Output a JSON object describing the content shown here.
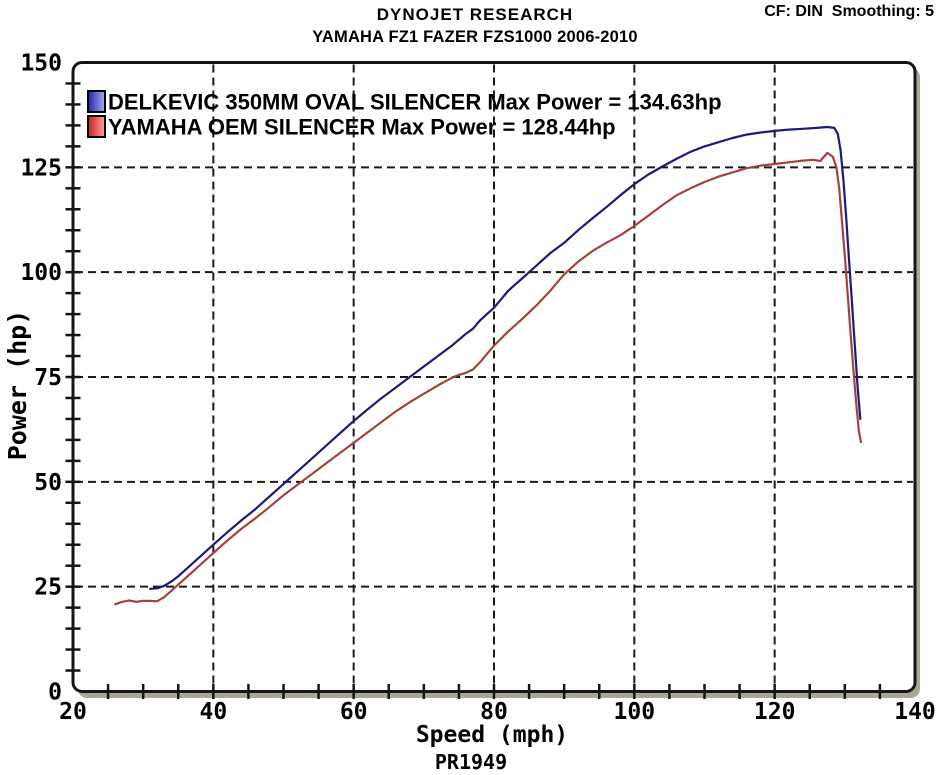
{
  "chart_data": {
    "type": "line",
    "title": "DYNOJET RESEARCH",
    "subtitle": "YAMAHA FZ1 FAZER FZS1000 2006-2010",
    "correction_info": "CF: DIN  Smoothing: 5",
    "run_id": "PR1949",
    "xlabel": "Speed (mph)",
    "ylabel": "Power (hp)",
    "xlim": [
      20,
      140
    ],
    "ylim": [
      0,
      150
    ],
    "x_major_ticks": [
      20,
      40,
      60,
      80,
      100,
      120,
      140
    ],
    "y_major_ticks": [
      0,
      25,
      50,
      75,
      100,
      125,
      150
    ],
    "x_minor_step": 5,
    "y_minor_step": 5,
    "grid": "dashed-major",
    "legend_position": "top-left-inside",
    "colors": {
      "frame_stroke": "#151515",
      "grid_stroke": "#1a1a1a",
      "shadow": "#aba695",
      "background": "#ffffff",
      "text": "#000000"
    },
    "series": [
      {
        "name": "DELKEVIC 350MM OVAL SILENCER",
        "label": "DELKEVIC 350MM OVAL SILENCER Max Power = 134.63hp",
        "max_power_hp": 134.63,
        "color": "#1b1b78",
        "swatch_gradient": [
          "#2222ac",
          "#a8aef2"
        ],
        "points": [
          [
            31,
            24.5
          ],
          [
            32,
            24.6
          ],
          [
            33,
            25.2
          ],
          [
            34,
            26.2
          ],
          [
            35,
            27.5
          ],
          [
            36,
            29
          ],
          [
            38,
            32
          ],
          [
            40,
            35
          ],
          [
            42,
            38
          ],
          [
            44,
            40.8
          ],
          [
            46,
            43.5
          ],
          [
            48,
            46.5
          ],
          [
            50,
            49.5
          ],
          [
            52,
            52.5
          ],
          [
            54,
            55.5
          ],
          [
            56,
            58.5
          ],
          [
            58,
            61.5
          ],
          [
            60,
            64.5
          ],
          [
            62,
            67.3
          ],
          [
            64,
            70
          ],
          [
            66,
            72.5
          ],
          [
            68,
            75
          ],
          [
            70,
            77.5
          ],
          [
            72,
            80
          ],
          [
            74,
            82.5
          ],
          [
            76,
            85.3
          ],
          [
            77,
            86.5
          ],
          [
            78,
            88.5
          ],
          [
            79,
            90
          ],
          [
            80,
            91.5
          ],
          [
            81,
            93.5
          ],
          [
            82,
            95.5
          ],
          [
            83,
            97
          ],
          [
            84,
            98.5
          ],
          [
            85,
            100
          ],
          [
            86,
            101.5
          ],
          [
            87,
            103
          ],
          [
            88,
            104.5
          ],
          [
            90,
            107
          ],
          [
            92,
            110
          ],
          [
            94,
            112.8
          ],
          [
            96,
            115.5
          ],
          [
            98,
            118.3
          ],
          [
            100,
            121
          ],
          [
            102,
            123.3
          ],
          [
            104,
            125.2
          ],
          [
            106,
            127
          ],
          [
            108,
            128.7
          ],
          [
            110,
            130
          ],
          [
            112,
            131
          ],
          [
            114,
            132
          ],
          [
            116,
            132.8
          ],
          [
            118,
            133.3
          ],
          [
            120,
            133.7
          ],
          [
            122,
            134
          ],
          [
            124,
            134.2
          ],
          [
            126,
            134.4
          ],
          [
            127.5,
            134.63
          ],
          [
            128.5,
            134.4
          ],
          [
            129,
            133
          ],
          [
            129.4,
            129
          ],
          [
            129.8,
            122
          ],
          [
            130.2,
            113
          ],
          [
            130.6,
            103
          ],
          [
            131,
            93
          ],
          [
            131.4,
            83
          ],
          [
            131.8,
            73
          ],
          [
            132.2,
            65
          ]
        ]
      },
      {
        "name": "YAMAHA OEM SILENCER",
        "label": "YAMAHA OEM SILENCER Max Power = 128.44hp",
        "max_power_hp": 128.44,
        "color": "#a5423c",
        "swatch_gradient": [
          "#cc2020",
          "#ff9f9f"
        ],
        "points": [
          [
            26,
            20.8
          ],
          [
            27,
            21.4
          ],
          [
            28,
            21.7
          ],
          [
            29,
            21.4
          ],
          [
            30,
            21.6
          ],
          [
            31,
            21.6
          ],
          [
            32,
            21.5
          ],
          [
            33,
            22.5
          ],
          [
            34,
            24
          ],
          [
            35,
            25.5
          ],
          [
            36,
            27
          ],
          [
            38,
            30
          ],
          [
            40,
            33
          ],
          [
            42,
            36
          ],
          [
            44,
            38.8
          ],
          [
            46,
            41.3
          ],
          [
            48,
            44
          ],
          [
            50,
            46.8
          ],
          [
            52,
            49.3
          ],
          [
            54,
            51.8
          ],
          [
            56,
            54.3
          ],
          [
            58,
            56.8
          ],
          [
            60,
            59.3
          ],
          [
            62,
            61.8
          ],
          [
            64,
            64.3
          ],
          [
            66,
            66.8
          ],
          [
            68,
            69
          ],
          [
            70,
            71
          ],
          [
            72,
            73
          ],
          [
            74,
            74.8
          ],
          [
            75,
            75.5
          ],
          [
            76,
            76
          ],
          [
            77,
            76.8
          ],
          [
            78,
            78.5
          ],
          [
            80,
            82.5
          ],
          [
            82,
            85.8
          ],
          [
            84,
            88.8
          ],
          [
            86,
            92
          ],
          [
            88,
            95.5
          ],
          [
            89,
            97.5
          ],
          [
            90,
            99.5
          ],
          [
            92,
            102.5
          ],
          [
            94,
            105
          ],
          [
            96,
            107
          ],
          [
            98,
            108.8
          ],
          [
            100,
            111
          ],
          [
            102,
            113.5
          ],
          [
            104,
            116
          ],
          [
            106,
            118.3
          ],
          [
            108,
            120
          ],
          [
            110,
            121.5
          ],
          [
            112,
            122.8
          ],
          [
            114,
            123.8
          ],
          [
            116,
            124.8
          ],
          [
            118,
            125.4
          ],
          [
            120,
            125.8
          ],
          [
            122,
            126.2
          ],
          [
            124,
            126.6
          ],
          [
            125.5,
            126.8
          ],
          [
            126.5,
            126.5
          ],
          [
            127.5,
            128.44
          ],
          [
            128.3,
            127.5
          ],
          [
            128.8,
            125
          ],
          [
            129.2,
            120
          ],
          [
            129.6,
            112
          ],
          [
            130,
            104
          ],
          [
            130.4,
            95
          ],
          [
            130.8,
            86
          ],
          [
            131.2,
            77
          ],
          [
            131.6,
            69
          ],
          [
            132,
            62
          ],
          [
            132.3,
            59.5
          ]
        ]
      }
    ]
  }
}
